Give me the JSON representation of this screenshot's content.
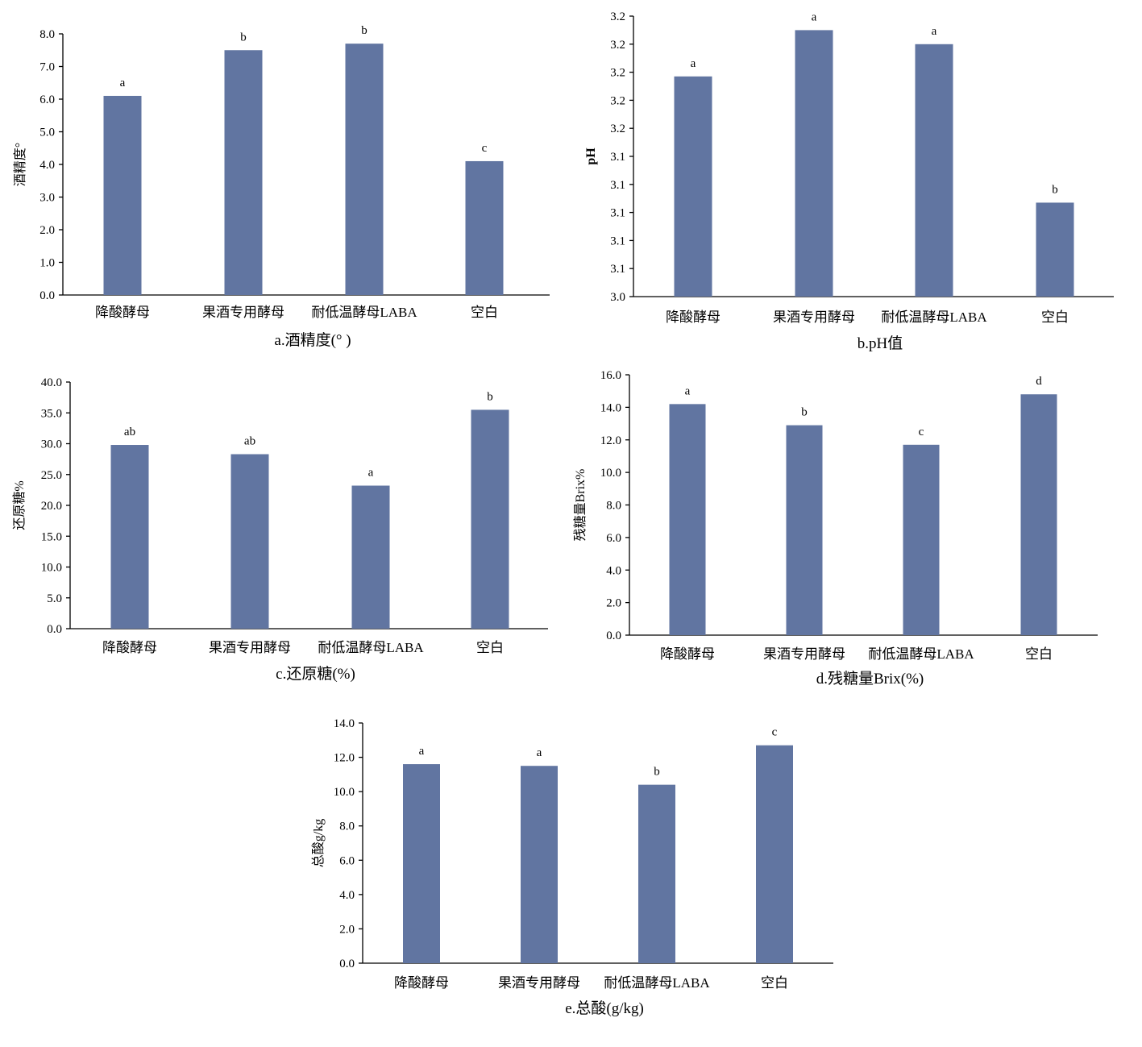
{
  "colors": {
    "bar": "#6175a1",
    "axis": "#000000"
  },
  "chart_data": [
    {
      "type": "bar",
      "caption": "a.酒精度(°  )",
      "ylabel": "酒精度°",
      "categories": [
        "降酸酵母",
        "果酒专用酵母",
        "耐低温酵母LABA",
        "空白"
      ],
      "values": [
        6.1,
        7.5,
        7.7,
        4.1
      ],
      "significance": [
        "a",
        "b",
        "b",
        "c"
      ],
      "ylim": [
        0,
        8
      ],
      "yticks": [
        "0.0",
        "1.0",
        "2.0",
        "3.0",
        "4.0",
        "5.0",
        "6.0",
        "7.0",
        "8.0"
      ],
      "grid": false
    },
    {
      "type": "bar",
      "caption": "b.pH值",
      "ylabel": "pH",
      "categories": [
        "降酸酵母",
        "果酒专用酵母",
        "耐低温酵母LABA",
        "空白"
      ],
      "values": [
        3.157,
        3.19,
        3.18,
        3.067
      ],
      "significance": [
        "a",
        "a",
        "a",
        "b"
      ],
      "ylim": [
        3.0,
        3.2
      ],
      "yticks": [
        "3.0",
        "3.1",
        "3.1",
        "3.1",
        "3.1",
        "3.1",
        "3.2",
        "3.2",
        "3.2",
        "3.2",
        "3.2"
      ],
      "grid": false
    },
    {
      "type": "bar",
      "caption": "c.还原糖(%)",
      "ylabel": "还原糖%",
      "categories": [
        "降酸酵母",
        "果酒专用酵母",
        "耐低温酵母LABA",
        "空白"
      ],
      "values": [
        29.8,
        28.3,
        23.2,
        35.5
      ],
      "significance": [
        "ab",
        "ab",
        "a",
        "b"
      ],
      "ylim": [
        0,
        40
      ],
      "yticks": [
        "0.0",
        "5.0",
        "10.0",
        "15.0",
        "20.0",
        "25.0",
        "30.0",
        "35.0",
        "40.0"
      ],
      "grid": false
    },
    {
      "type": "bar",
      "caption": "d.残糖量Brix(%)",
      "ylabel": "残糖量Brix%",
      "categories": [
        "降酸酵母",
        "果酒专用酵母",
        "耐低温酵母LABA",
        "空白"
      ],
      "values": [
        14.2,
        12.9,
        11.7,
        14.8
      ],
      "significance": [
        "a",
        "b",
        "c",
        "d"
      ],
      "ylim": [
        0,
        16
      ],
      "yticks": [
        "0.0",
        "2.0",
        "4.0",
        "6.0",
        "8.0",
        "10.0",
        "12.0",
        "14.0",
        "16.0"
      ],
      "grid": false
    },
    {
      "type": "bar",
      "caption": "e.总酸(g/kg)",
      "ylabel": "总酸g/kg",
      "categories": [
        "降酸酵母",
        "果酒专用酵母",
        "耐低温酵母LABA",
        "空白"
      ],
      "values": [
        11.6,
        11.5,
        10.4,
        12.7
      ],
      "significance": [
        "a",
        "a",
        "b",
        "c"
      ],
      "ylim": [
        0,
        14
      ],
      "yticks": [
        "0.0",
        "2.0",
        "4.0",
        "6.0",
        "8.0",
        "10.0",
        "12.0",
        "14.0"
      ],
      "grid": false
    }
  ]
}
